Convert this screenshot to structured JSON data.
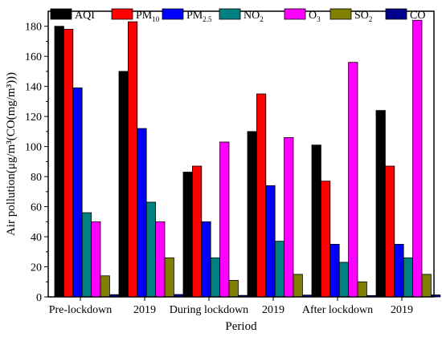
{
  "chart_data": {
    "type": "bar",
    "xlabel": "Period",
    "ylabel": "Air pollution(μg/m³(CO(mg/m³)))",
    "ylim": [
      0,
      190
    ],
    "yticks": [
      0,
      20,
      40,
      60,
      80,
      100,
      120,
      140,
      160,
      180
    ],
    "grid": false,
    "legend_position": "top",
    "categories": [
      "Pre-lockdown",
      "2019",
      "During lockdown",
      "2019",
      "After lockdown",
      "2019"
    ],
    "series": [
      {
        "name": "AQI",
        "legend_base": "AQI",
        "legend_sub": "",
        "legend_sup": "",
        "color": "#000000",
        "values": [
          180,
          150,
          83,
          110,
          101,
          124
        ]
      },
      {
        "name": "PM10",
        "legend_base": "PM",
        "legend_sub": "10",
        "legend_sup": "",
        "color": "#ff0000",
        "values": [
          178,
          183,
          87,
          135,
          77,
          87
        ]
      },
      {
        "name": "PM2.5",
        "legend_base": "PM",
        "legend_sub": "2.5",
        "legend_sup": "",
        "color": "#0000ff",
        "values": [
          139,
          112,
          50,
          74,
          35,
          35
        ]
      },
      {
        "name": "NO2",
        "legend_base": "NO",
        "legend_sub": "2",
        "legend_sup": "",
        "color": "#008080",
        "values": [
          56,
          63,
          26,
          37,
          23,
          26
        ]
      },
      {
        "name": "O3",
        "legend_base": "O",
        "legend_sub": "3",
        "legend_sup": "",
        "color": "#ff00ff",
        "values": [
          50,
          50,
          103,
          106,
          156,
          184
        ]
      },
      {
        "name": "SO2",
        "legend_base": "SO",
        "legend_sub": "2",
        "legend_sup": "",
        "color": "#808000",
        "values": [
          14,
          26,
          11,
          15,
          10,
          15
        ]
      },
      {
        "name": "CO",
        "legend_base": "CO",
        "legend_sub": "",
        "legend_sup": "",
        "color": "#00008b",
        "values": [
          1.5,
          1.6,
          1.0,
          1.2,
          0.9,
          1.3
        ]
      }
    ]
  }
}
